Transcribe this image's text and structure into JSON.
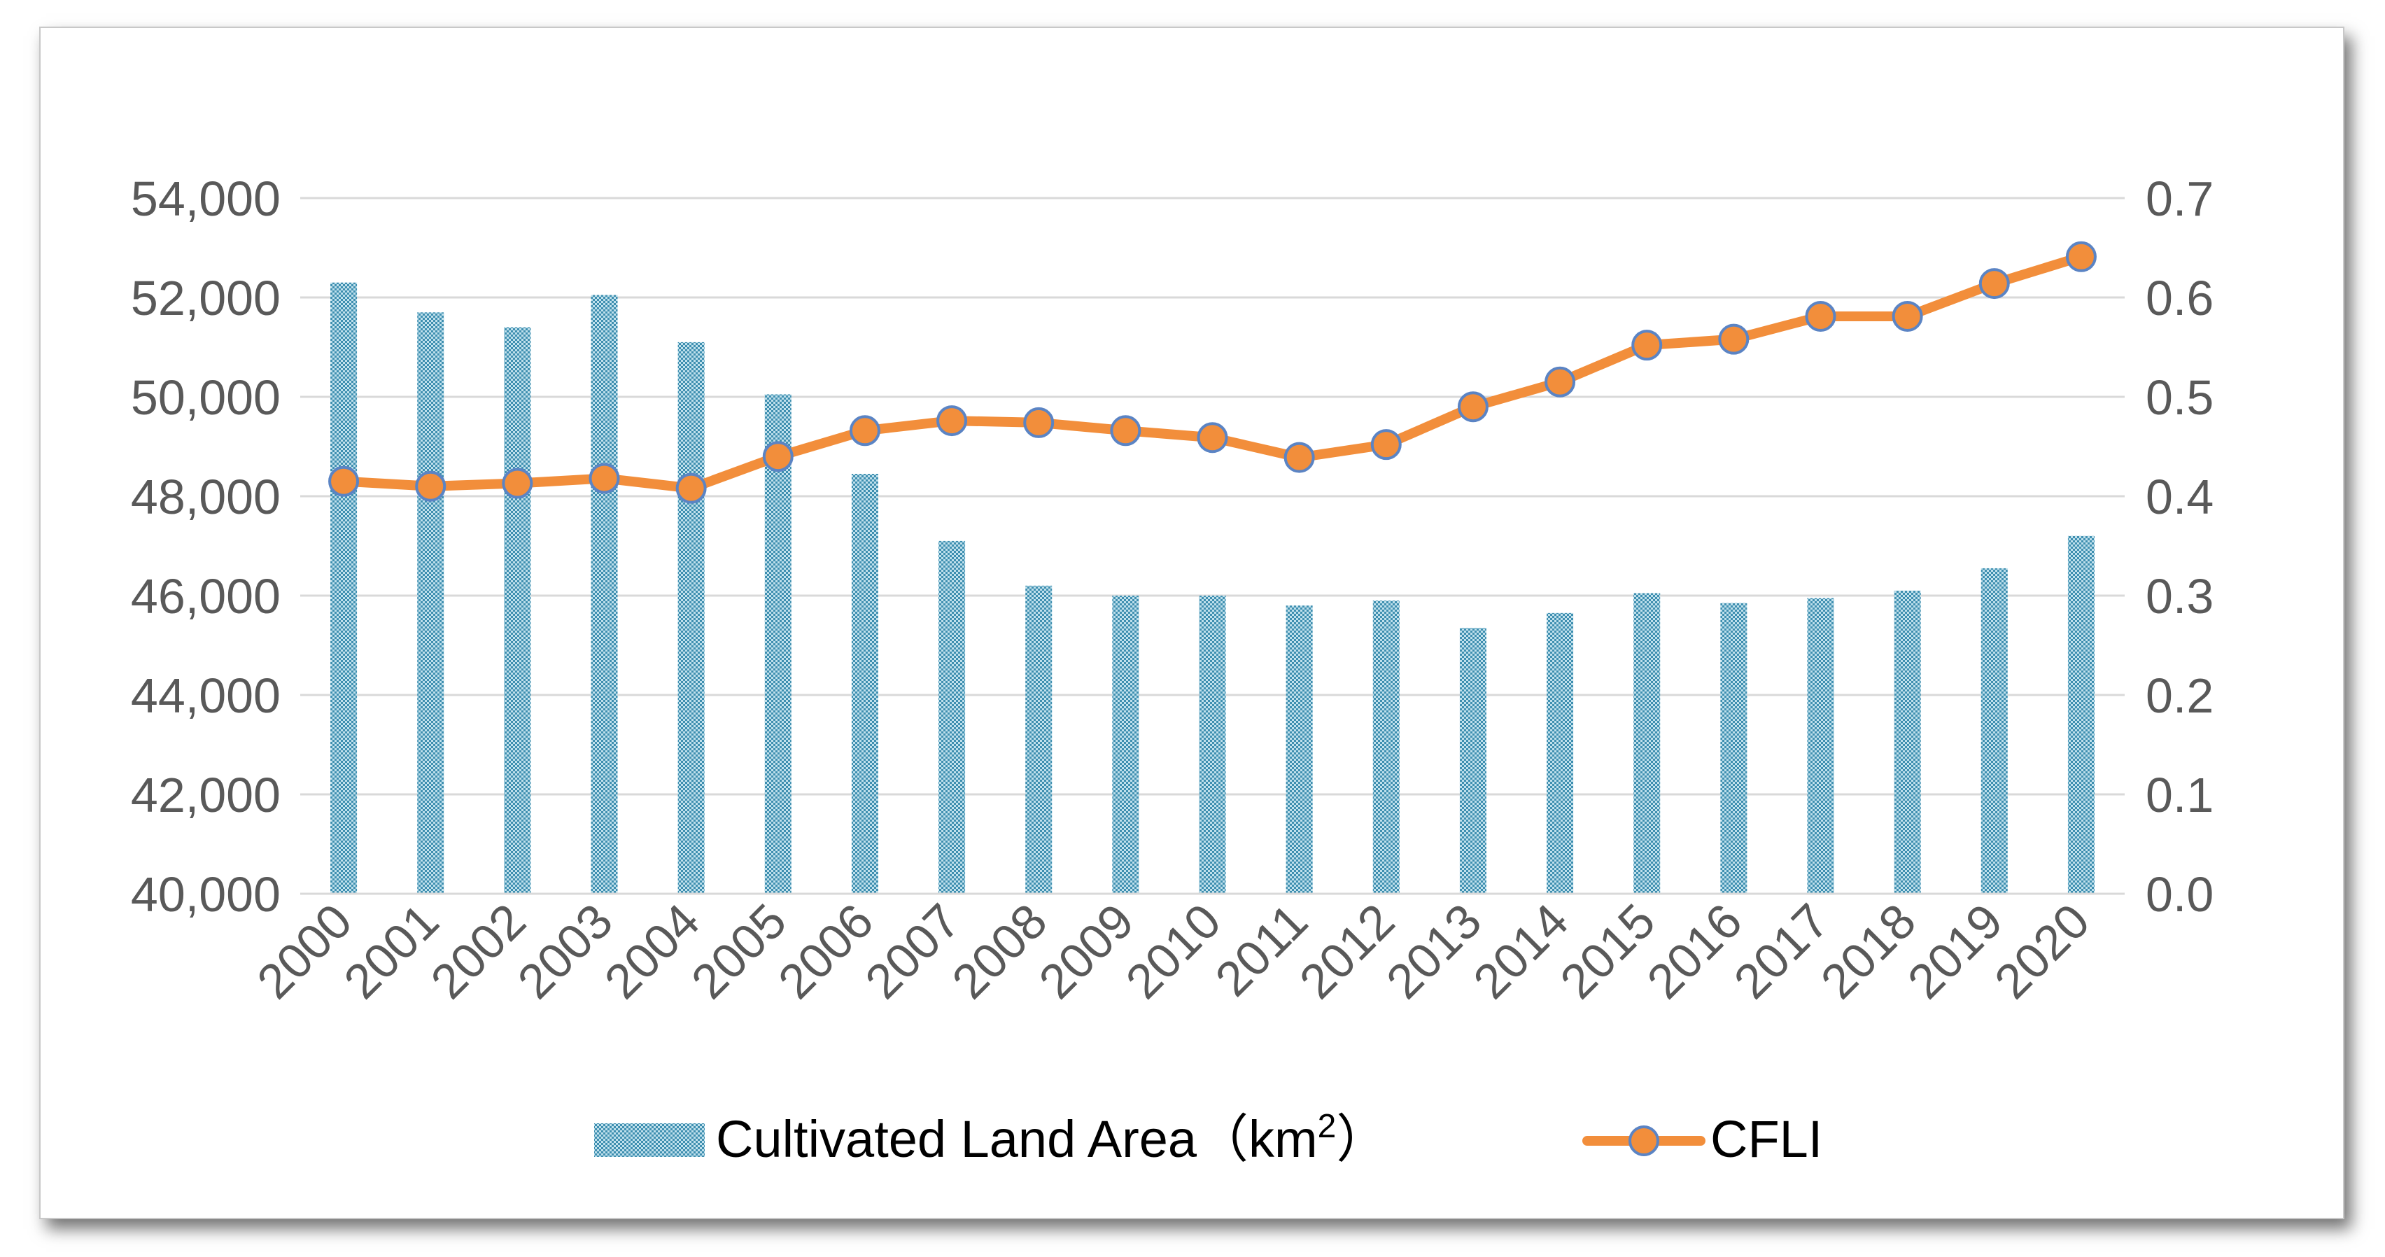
{
  "chart_data": {
    "type": "bar",
    "title": "",
    "xlabel": "",
    "ylabel": "",
    "categories": [
      "2000",
      "2001",
      "2002",
      "2003",
      "2004",
      "2005",
      "2006",
      "2007",
      "2008",
      "2009",
      "2010",
      "2011",
      "2012",
      "2013",
      "2014",
      "2015",
      "2016",
      "2017",
      "2018",
      "2019",
      "2020"
    ],
    "series": [
      {
        "name": "Cultivated Land Area",
        "legend_text": "Cultivated Land Area（km",
        "legend_sup": "2",
        "legend_close": "）",
        "type": "bar",
        "axis": "left",
        "color": "#3f8fb0",
        "values": [
          52300,
          51700,
          51400,
          52050,
          51100,
          50050,
          48450,
          47100,
          46200,
          46000,
          46000,
          45800,
          45900,
          45350,
          45650,
          46050,
          45850,
          45950,
          46100,
          46550,
          47200
        ]
      },
      {
        "name": "CFLI",
        "legend_text": "CFLI",
        "type": "line",
        "axis": "right",
        "color": "#f28e3b",
        "marker_edge": "#5b84c4",
        "values": [
          0.415,
          0.41,
          0.413,
          0.418,
          0.408,
          0.44,
          0.466,
          0.476,
          0.474,
          0.466,
          0.459,
          0.439,
          0.452,
          0.49,
          0.515,
          0.552,
          0.558,
          0.581,
          0.581,
          0.614,
          0.641
        ]
      }
    ],
    "y_left": {
      "min": 40000,
      "max": 54000,
      "ticks": [
        40000,
        42000,
        44000,
        46000,
        48000,
        50000,
        52000,
        54000
      ],
      "tick_labels": [
        "40,000",
        "42,000",
        "44,000",
        "46,000",
        "48,000",
        "50,000",
        "52,000",
        "54,000"
      ]
    },
    "y_right": {
      "min": 0,
      "max": 0.7,
      "ticks": [
        0,
        0.1,
        0.2,
        0.3,
        0.4,
        0.5,
        0.6,
        0.7
      ],
      "tick_labels": [
        "0.0",
        "0.1",
        "0.2",
        "0.3",
        "0.4",
        "0.5",
        "0.6",
        "0.7"
      ]
    },
    "grid": true,
    "legend_position": "bottom-center"
  }
}
